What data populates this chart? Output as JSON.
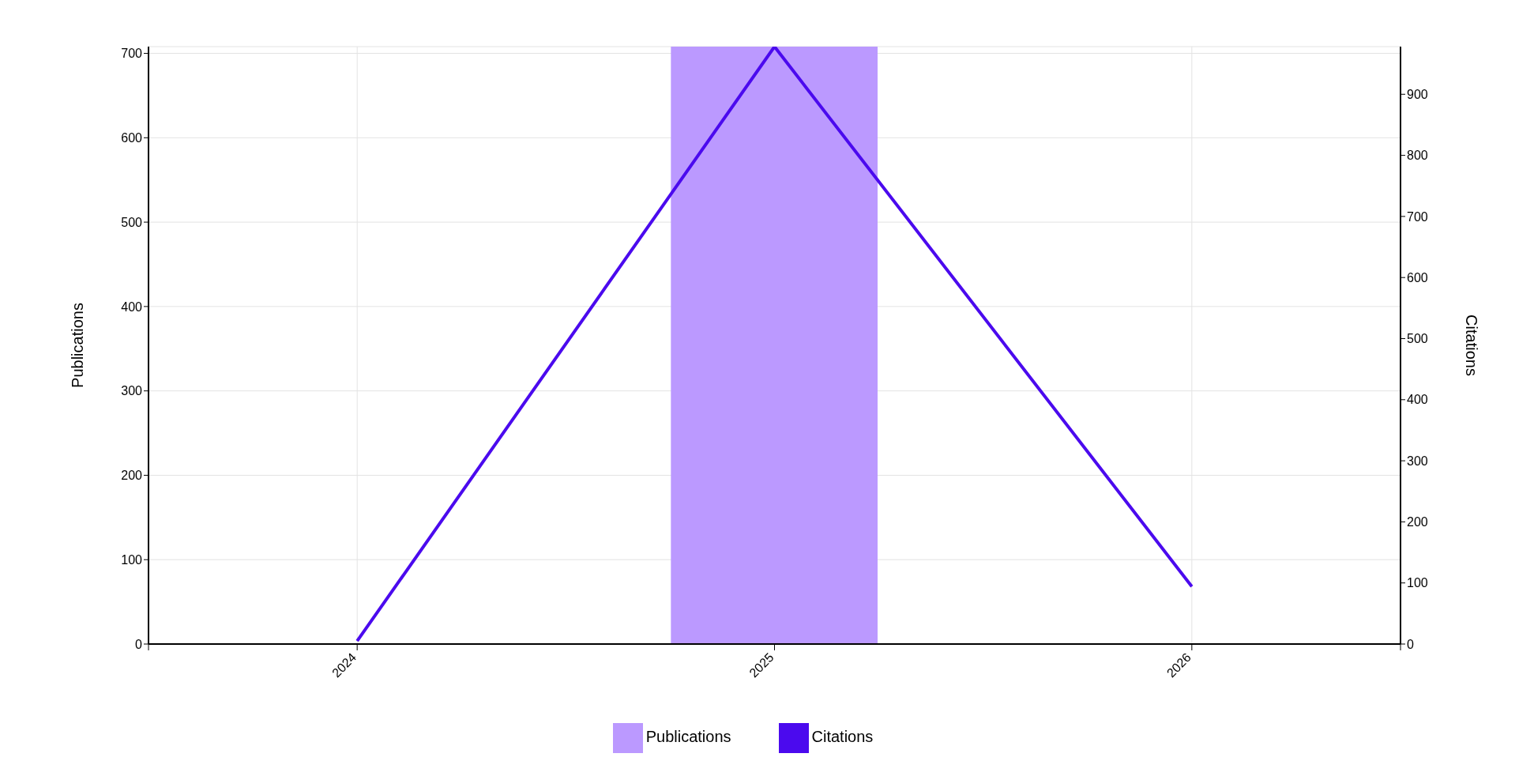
{
  "chart_data": {
    "type": "bar",
    "x": [
      2024,
      2025,
      2026
    ],
    "xlim": [
      2023.5,
      2026.5
    ],
    "xticks": [
      {
        "value": 2023.5,
        "label": null
      },
      2024,
      2025,
      2026,
      {
        "value": 2026.5,
        "label": null
      }
    ],
    "ylabel": "Publications",
    "y2label": "Citations",
    "ylim": [
      0,
      708
    ],
    "yticks": [
      0,
      100,
      200,
      300,
      400,
      500,
      600,
      700
    ],
    "y2lim": [
      0,
      978
    ],
    "y2ticks": [
      0,
      100,
      200,
      300,
      400,
      500,
      600,
      700,
      800,
      900
    ],
    "series": [
      {
        "name": "Publications",
        "color": "#bb99ff",
        "values": [
          0,
          708,
          0
        ]
      },
      {
        "name": "Citations",
        "type": "line",
        "axis": "y2",
        "color": "#4b0aee",
        "values": [
          5,
          978,
          94
        ]
      }
    ],
    "grid": true,
    "legend": "bottom",
    "marker": "none",
    "line_style": "solid"
  }
}
